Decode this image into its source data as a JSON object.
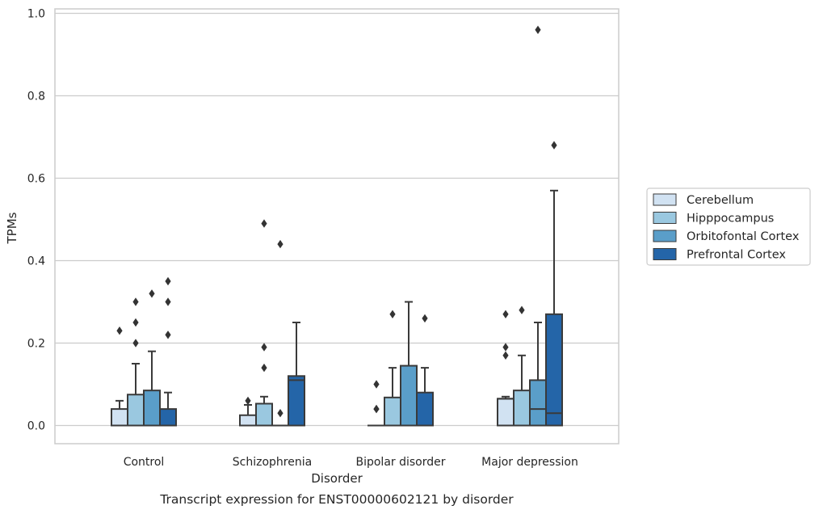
{
  "chart_data": {
    "type": "box",
    "caption": "Transcript expression for ENST00000602121 by disorder",
    "xlabel": "Disorder",
    "ylabel": "TPMs",
    "ylim": [
      -0.045,
      1.01
    ],
    "yticks": [
      "0.0",
      "0.2",
      "0.4",
      "0.6",
      "0.8",
      "1.0"
    ],
    "ytick_values": [
      0.0,
      0.2,
      0.4,
      0.6,
      0.8,
      1.0
    ],
    "grid": "horizontal",
    "legend_position": "right",
    "categories": [
      "Control",
      "Schizophrenia",
      "Bipolar disorder",
      "Major depression"
    ],
    "series": [
      {
        "name": "Cerebellum",
        "color": "#d1e2f2",
        "boxes": [
          {
            "whisker_low": 0.0,
            "q1": 0.0,
            "median": 0.0,
            "q3": 0.04,
            "whisker_high": 0.06,
            "outliers": [
              0.23
            ]
          },
          {
            "whisker_low": 0.0,
            "q1": 0.0,
            "median": 0.0,
            "q3": 0.025,
            "whisker_high": 0.05,
            "outliers": [
              0.06
            ]
          },
          {
            "whisker_low": 0.0,
            "q1": 0.0,
            "median": 0.0,
            "q3": 0.0,
            "whisker_high": 0.0,
            "outliers": [
              0.1,
              0.04,
              0.04
            ]
          },
          {
            "whisker_low": 0.0,
            "q1": 0.0,
            "median": 0.065,
            "q3": 0.065,
            "whisker_high": 0.07,
            "outliers": [
              0.27,
              0.19,
              0.17
            ]
          }
        ]
      },
      {
        "name": "Hipppocampus",
        "color": "#9ac8e0",
        "boxes": [
          {
            "whisker_low": 0.0,
            "q1": 0.0,
            "median": 0.0,
            "q3": 0.075,
            "whisker_high": 0.15,
            "outliers": [
              0.3,
              0.25,
              0.2
            ]
          },
          {
            "whisker_low": 0.0,
            "q1": 0.0,
            "median": 0.0,
            "q3": 0.053,
            "whisker_high": 0.07,
            "outliers": [
              0.49,
              0.19,
              0.14
            ]
          },
          {
            "whisker_low": 0.0,
            "q1": 0.0,
            "median": 0.0,
            "q3": 0.068,
            "whisker_high": 0.14,
            "outliers": [
              0.27
            ]
          },
          {
            "whisker_low": 0.0,
            "q1": 0.0,
            "median": 0.0,
            "q3": 0.085,
            "whisker_high": 0.17,
            "outliers": [
              0.28
            ]
          }
        ]
      },
      {
        "name": "Orbitofontal Cortex",
        "color": "#5a9ec9",
        "boxes": [
          {
            "whisker_low": 0.0,
            "q1": 0.0,
            "median": 0.0,
            "q3": 0.085,
            "whisker_high": 0.18,
            "outliers": [
              0.32
            ]
          },
          {
            "whisker_low": 0.0,
            "q1": 0.0,
            "median": 0.0,
            "q3": 0.0,
            "whisker_high": 0.0,
            "outliers": [
              0.44,
              0.03
            ]
          },
          {
            "whisker_low": 0.0,
            "q1": 0.0,
            "median": 0.0,
            "q3": 0.145,
            "whisker_high": 0.3,
            "outliers": []
          },
          {
            "whisker_low": 0.0,
            "q1": 0.0,
            "median": 0.04,
            "q3": 0.11,
            "whisker_high": 0.25,
            "outliers": [
              0.96
            ]
          }
        ]
      },
      {
        "name": "Prefrontal Cortex",
        "color": "#2465a8",
        "boxes": [
          {
            "whisker_low": 0.0,
            "q1": 0.0,
            "median": 0.0,
            "q3": 0.04,
            "whisker_high": 0.08,
            "outliers": [
              0.35,
              0.3,
              0.22
            ]
          },
          {
            "whisker_low": 0.0,
            "q1": 0.0,
            "median": 0.11,
            "q3": 0.12,
            "whisker_high": 0.25,
            "outliers": []
          },
          {
            "whisker_low": 0.0,
            "q1": 0.0,
            "median": 0.0,
            "q3": 0.08,
            "whisker_high": 0.14,
            "outliers": [
              0.26
            ]
          },
          {
            "whisker_low": 0.0,
            "q1": 0.0,
            "median": 0.03,
            "q3": 0.27,
            "whisker_high": 0.57,
            "outliers": [
              0.68
            ]
          }
        ]
      }
    ]
  }
}
